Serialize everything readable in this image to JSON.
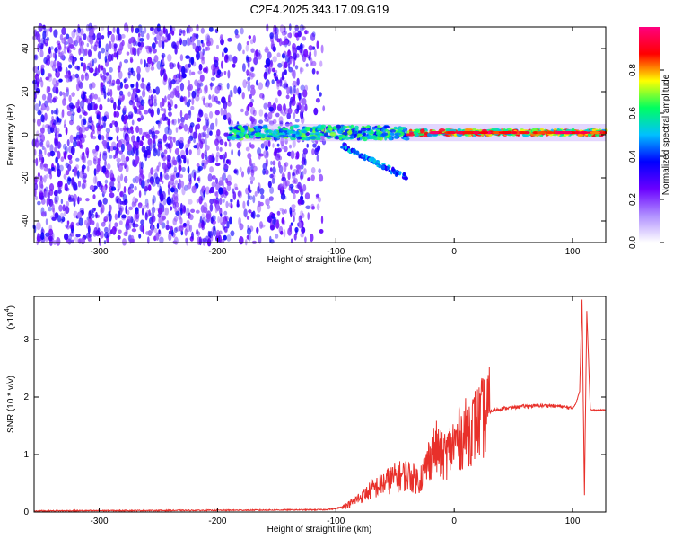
{
  "title": "C2E4.2025.343.17.09.G19",
  "chart_data": [
    {
      "type": "heatmap",
      "title": "C2E4.2025.343.17.09.G19",
      "xlabel": "Height of straight line (km)",
      "ylabel": "Frequency (Hz)",
      "xlim": [
        -355,
        128
      ],
      "ylim": [
        -50,
        50
      ],
      "xticks": [
        -300,
        -200,
        -100,
        0,
        100
      ],
      "yticks": [
        -40,
        -20,
        0,
        20,
        40
      ],
      "colorbar": {
        "label": "Normalized spectral amplitude",
        "range": [
          0,
          1
        ],
        "ticks": [
          "0.0",
          "0.2",
          "0.4",
          "0.6",
          "0.8"
        ],
        "colors": [
          "#ffffff",
          "#b090ff",
          "#6a00ff",
          "#0000ff",
          "#00c0ff",
          "#00ff60",
          "#ffff00",
          "#ff0000",
          "#ff0080"
        ]
      },
      "regions": [
        {
          "name": "noise",
          "x": [
            -355,
            -110
          ],
          "y": [
            -50,
            50
          ],
          "level": 0.15
        },
        {
          "name": "signal-track",
          "x": [
            -190,
            128
          ],
          "center_y": 1,
          "level": 0.9
        },
        {
          "name": "branch",
          "x": [
            -95,
            -40
          ],
          "y": [
            -5,
            -20
          ],
          "level": 0.5
        }
      ]
    },
    {
      "type": "line",
      "xlabel": "Height of straight line (km)",
      "ylabel": "SNR (10 * v/v)",
      "yscale_label": "(x10",
      "yscale_exp": "4",
      "yscale_close": ")",
      "xlim": [
        -355,
        128
      ],
      "ylim": [
        0,
        3.75
      ],
      "xticks": [
        -300,
        -200,
        -100,
        0,
        100
      ],
      "yticks": [
        0,
        1,
        2,
        3
      ],
      "color": "#e8302a",
      "series": [
        {
          "x": [
            -355,
            -200,
            -110,
            -100,
            -90,
            -80,
            -70,
            -60,
            -50,
            -40,
            -30,
            -25,
            -20,
            -15,
            -10,
            -5,
            0,
            10,
            20,
            30,
            40,
            50,
            60,
            70,
            80,
            90,
            95,
            100,
            103,
            106,
            108,
            110,
            112,
            115,
            120,
            128
          ],
          "values": [
            0.02,
            0.03,
            0.04,
            0.06,
            0.12,
            0.25,
            0.38,
            0.5,
            0.6,
            0.65,
            0.55,
            0.72,
            1.0,
            1.1,
            0.95,
            1.05,
            1.2,
            1.38,
            1.55,
            1.75,
            1.8,
            1.82,
            1.84,
            1.85,
            1.85,
            1.84,
            1.82,
            1.8,
            1.9,
            2.1,
            3.7,
            0.3,
            3.5,
            1.78,
            1.77,
            1.78
          ]
        }
      ]
    }
  ]
}
